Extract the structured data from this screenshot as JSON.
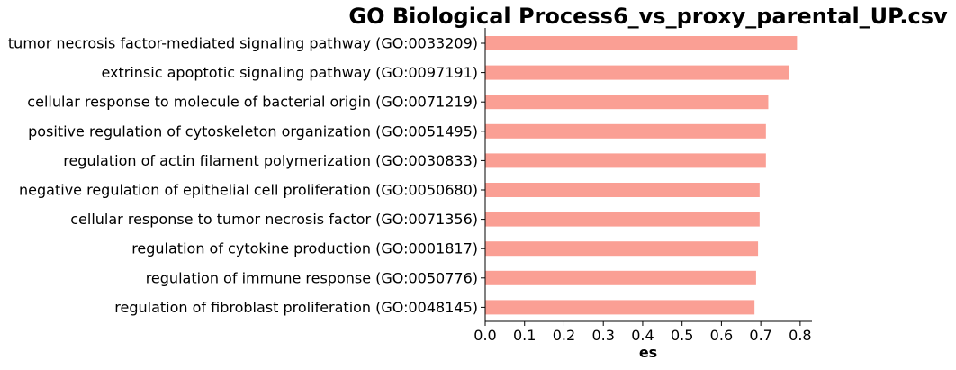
{
  "chart_data": {
    "type": "bar",
    "orientation": "horizontal",
    "title": "GO Biological Process6_vs_proxy_parental_UP.csv",
    "xlabel": "es",
    "ylabel": "",
    "xlim": [
      0.0,
      0.83
    ],
    "xticks": [
      "0.0",
      "0.1",
      "0.2",
      "0.3",
      "0.4",
      "0.5",
      "0.6",
      "0.7",
      "0.8"
    ],
    "grid": false,
    "legend": "none",
    "bar_color": "#fa9f94",
    "categories": [
      "tumor necrosis factor-mediated signaling pathway (GO:0033209)",
      "extrinsic apoptotic signaling pathway (GO:0097191)",
      "cellular response to molecule of bacterial origin (GO:0071219)",
      "positive regulation of cytoskeleton organization (GO:0051495)",
      "regulation of actin filament polymerization (GO:0030833)",
      "negative regulation of epithelial cell proliferation (GO:0050680)",
      "cellular response to tumor necrosis factor (GO:0071356)",
      "regulation of cytokine production (GO:0001817)",
      "regulation of immune response (GO:0050776)",
      "regulation of fibroblast proliferation (GO:0048145)"
    ],
    "values": [
      0.792,
      0.772,
      0.719,
      0.713,
      0.713,
      0.697,
      0.697,
      0.693,
      0.688,
      0.684
    ]
  }
}
